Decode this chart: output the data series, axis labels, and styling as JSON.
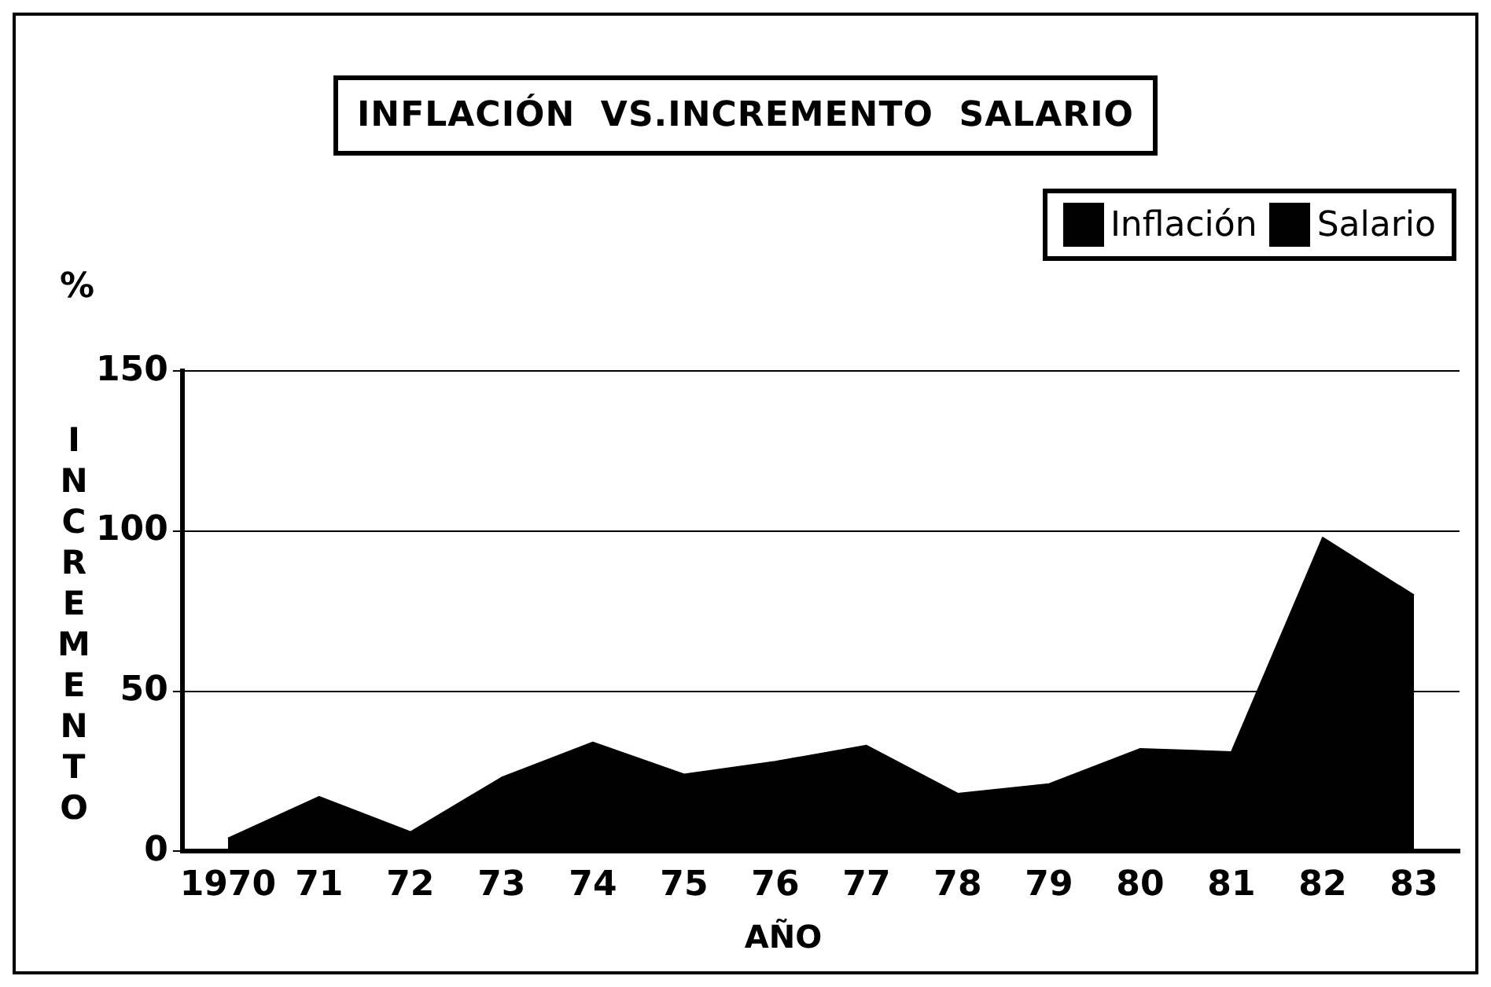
{
  "chart_data": {
    "type": "area",
    "title": "INFLACIÓN  VS.INCREMENTO  SALARIO",
    "xlabel": "AÑO",
    "ylabel": "INCREMENTO",
    "annotations": [
      "%"
    ],
    "categories": [
      "1970",
      "71",
      "72",
      "73",
      "74",
      "75",
      "76",
      "77",
      "78",
      "79",
      "80",
      "81",
      "82",
      "83"
    ],
    "series": [
      {
        "name": "Inflación",
        "color": "#000000",
        "values": [
          4,
          17,
          6,
          23,
          34,
          24,
          28,
          33,
          18,
          21,
          32,
          31,
          98,
          80
        ]
      },
      {
        "name": "Salario",
        "color": "#000000",
        "values": [
          null,
          null,
          null,
          null,
          null,
          null,
          null,
          null,
          null,
          null,
          null,
          null,
          null,
          null
        ]
      }
    ],
    "ylim": [
      0,
      150
    ],
    "yticks": [
      0,
      50,
      100,
      150
    ],
    "grid": "y",
    "legend": "top right"
  }
}
